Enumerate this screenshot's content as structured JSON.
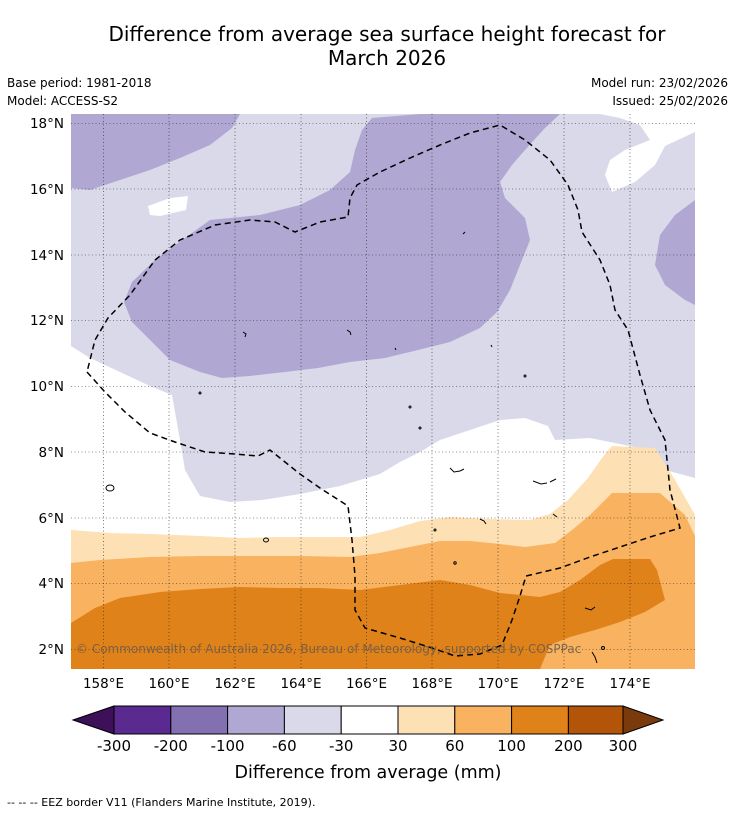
{
  "title": {
    "line1": "Difference from average sea surface height forecast for",
    "line2": "March 2026"
  },
  "meta": {
    "base_period": "Base period: 1981-2018",
    "model": "Model: ACCESS-S2",
    "model_run": "Model run: 23/02/2026",
    "issued": "Issued: 25/02/2026"
  },
  "map": {
    "lat_labels": [
      "18°N",
      "16°N",
      "14°N",
      "12°N",
      "10°N",
      "8°N",
      "6°N",
      "4°N",
      "2°N"
    ],
    "lon_labels": [
      "158°E",
      "160°E",
      "162°E",
      "164°E",
      "166°E",
      "168°E",
      "170°E",
      "172°E",
      "174°E"
    ],
    "copyright": "© Commonwealth of Australia 2026, Bureau of Meteorology, supported by COSPPac"
  },
  "colorbar": {
    "tick_labels": [
      "-300",
      "-200",
      "-100",
      "-60",
      "-30",
      "30",
      "60",
      "100",
      "200",
      "300"
    ],
    "label": "Difference from average (mm)",
    "colors": [
      "#3d1059",
      "#5a2a91",
      "#8270b0",
      "#b0a8d2",
      "#d9d9ea",
      "#ffffff",
      "#fde0b4",
      "#f9b25f",
      "#e0821a",
      "#b35508",
      "#7a3a0b"
    ]
  },
  "footer": "--  --  -- EEZ border V11 (Flanders Marine Institute, 2019)."
}
